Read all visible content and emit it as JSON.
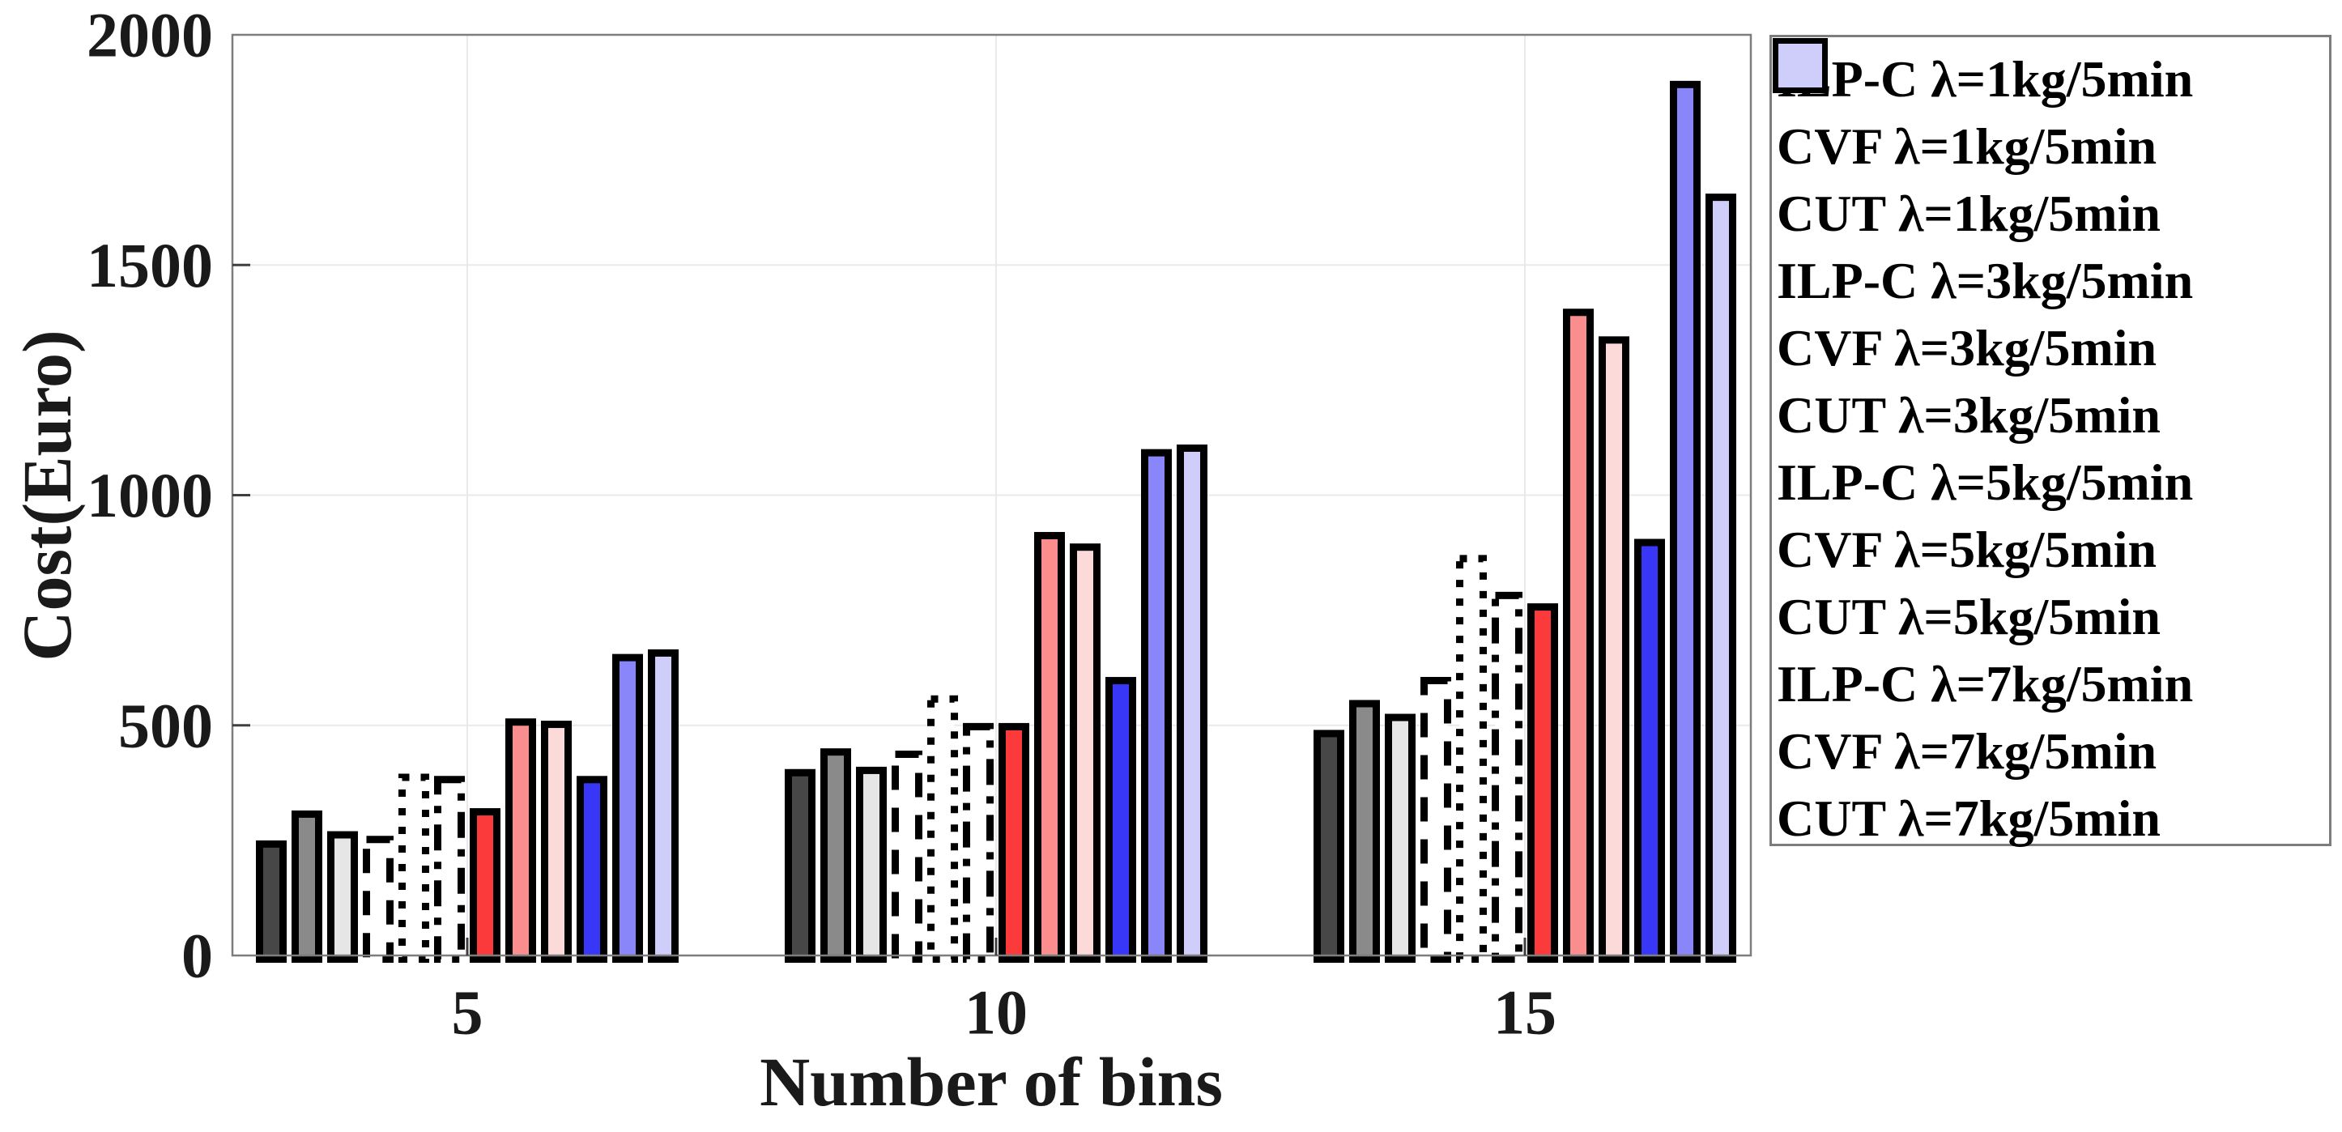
{
  "figure": {
    "background": "#ffffff",
    "axis_box_color": "#7d7d7d",
    "grid_color": "#e9e9e9",
    "tick_color": "#3f3f3f",
    "bar_border_color": "#000000",
    "text_color": "#1a1a1a"
  },
  "chart_data": {
    "type": "bar",
    "title": "",
    "xlabel": "Number of bins",
    "ylabel": "Cost(Euro)",
    "categories": [
      "5",
      "10",
      "15"
    ],
    "ylim": [
      0,
      2000
    ],
    "yticks": [
      0,
      500,
      1000,
      1500,
      2000
    ],
    "grid": "on",
    "legend_position": "outside-right",
    "series": [
      {
        "name": "ILP-C λ=1kg/5min",
        "fill": "#474747",
        "border_style": "solid",
        "values": [
          250,
          405,
          490
        ]
      },
      {
        "name": "CVF λ=1kg/5min",
        "fill": "#8a8a8a",
        "border_style": "solid",
        "values": [
          315,
          450,
          555
        ]
      },
      {
        "name": "CUT λ=1kg/5min",
        "fill": "#e6e6e6",
        "border_style": "solid",
        "values": [
          270,
          410,
          525
        ]
      },
      {
        "name": "ILP-C λ=3kg/5min",
        "fill": "#ffffff",
        "border_style": "dashed",
        "values": [
          260,
          445,
          605
        ]
      },
      {
        "name": "CVF λ=3kg/5min",
        "fill": "#ffffff",
        "border_style": "dotted",
        "values": [
          395,
          565,
          870
        ]
      },
      {
        "name": "CUT λ=3kg/5min",
        "fill": "#ffffff",
        "border_style": "dashdot",
        "values": [
          390,
          505,
          790
        ]
      },
      {
        "name": "ILP-C λ=5kg/5min",
        "fill": "#fb3b3b",
        "border_style": "solid",
        "values": [
          320,
          505,
          765
        ]
      },
      {
        "name": "CVF λ=5kg/5min",
        "fill": "#fa8e8e",
        "border_style": "solid",
        "values": [
          515,
          920,
          1405
        ]
      },
      {
        "name": "CUT λ=5kg/5min",
        "fill": "#fcdada",
        "border_style": "solid",
        "values": [
          510,
          895,
          1345
        ]
      },
      {
        "name": "ILP-C λ=7kg/5min",
        "fill": "#3837f8",
        "border_style": "solid",
        "values": [
          390,
          605,
          905
        ]
      },
      {
        "name": "CVF λ=7kg/5min",
        "fill": "#8886f9",
        "border_style": "solid",
        "values": [
          655,
          1100,
          1900
        ]
      },
      {
        "name": "CUT λ=7kg/5min",
        "fill": "#cfcefa",
        "border_style": "solid",
        "values": [
          665,
          1110,
          1655
        ]
      }
    ]
  }
}
